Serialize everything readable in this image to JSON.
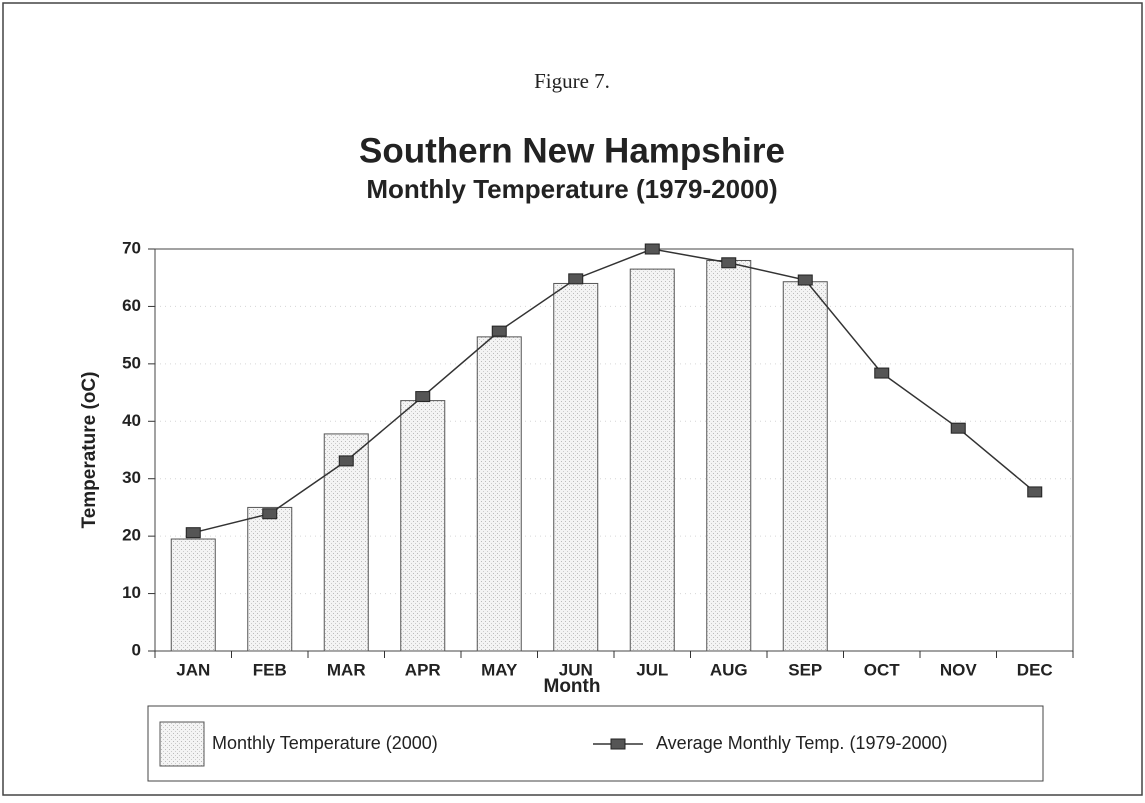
{
  "chart_data": {
    "type": "bar",
    "figure_label": "Figure 7.",
    "title": "Southern New Hampshire",
    "subtitle": "Monthly Temperature (1979-2000)",
    "x_label": "Month",
    "y_label": "Temperature (oC)",
    "categories": [
      "JAN",
      "FEB",
      "MAR",
      "APR",
      "MAY",
      "JUN",
      "JUL",
      "AUG",
      "SEP",
      "OCT",
      "NOV",
      "DEC"
    ],
    "series": [
      {
        "name": "Monthly Temperature (2000)",
        "type": "bar",
        "color": "#ececec",
        "values": [
          19.5,
          25,
          37.8,
          43.6,
          54.7,
          64,
          66.5,
          68,
          64.3,
          null,
          null,
          null
        ]
      },
      {
        "name": "Average Monthly Temp. (1979-2000)",
        "type": "line",
        "color": "#333333",
        "values": [
          20.6,
          23.9,
          33.1,
          44.3,
          55.7,
          64.8,
          70,
          67.6,
          64.6,
          48.4,
          38.8,
          27.7
        ]
      }
    ],
    "ylim": [
      0,
      70
    ],
    "yticks": [
      0,
      10,
      20,
      30,
      40,
      50,
      60,
      70
    ],
    "grid": true
  }
}
